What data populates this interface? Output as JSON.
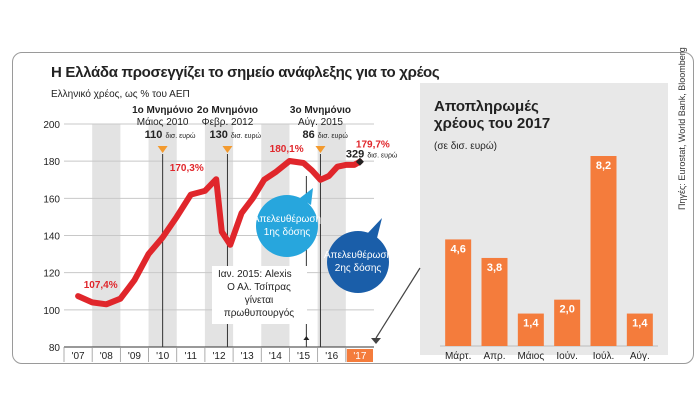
{
  "title": "Η Ελλάδα προσεγγίζει το σημείο ανάφλεξης για το χρέος",
  "subtitle": "Ελληνικό χρέος, ως % του ΑΕΠ",
  "right_title": "Αποπληρωμές χρέους του 2017",
  "right_subtitle": "(σε δισ. ευρώ)",
  "sources": "Πηγές: Eurostat, World Bank, Bloomberg",
  "colors": {
    "line": "#e0262b",
    "bar": "#f47c3c",
    "bubble_light": "#27a6dd",
    "bubble_dark": "#1a5ea9",
    "marker": "#f39a2e"
  },
  "chart_data": [
    {
      "type": "line",
      "title": "Η Ελλάδα προσεγγίζει το σημείο ανάφλεξης για το χρέος",
      "ylabel": "Ελληνικό χρέος, ως % του ΑΕΠ",
      "ylim": [
        80,
        200
      ],
      "yticks": [
        "80",
        "100",
        "120",
        "140",
        "160",
        "180",
        "200"
      ],
      "xticks": [
        "'07",
        "'08",
        "'09",
        "'10",
        "'11",
        "'12",
        "'13",
        "'14",
        "'15",
        "'16",
        "'17"
      ],
      "grid": true,
      "series": [
        {
          "x": [
            2007.0,
            2007.5,
            2008.0,
            2008.5,
            2009.0,
            2009.5,
            2010.0,
            2010.5,
            2011.0,
            2011.5,
            2011.9,
            2012.1,
            2012.4,
            2012.8,
            2013.2,
            2013.6,
            2014.0,
            2014.5,
            2015.0,
            2015.3,
            2015.6,
            2015.9,
            2016.2,
            2016.5,
            2016.8,
            2017.0
          ],
          "values": [
            107.4,
            104,
            103,
            106,
            116,
            130,
            139,
            150,
            162,
            164,
            170.3,
            142,
            135,
            152,
            160,
            170,
            174,
            180.1,
            179,
            175,
            170,
            172,
            177,
            178,
            178,
            179.7
          ]
        }
      ],
      "data_labels": [
        {
          "x": 2007.2,
          "y": 107.4,
          "text": "107,4%"
        },
        {
          "x": 2011.6,
          "y": 170.3,
          "text": "170,3%"
        },
        {
          "x": 2014.4,
          "y": 180.1,
          "text": "180,1%"
        },
        {
          "x": 2017.0,
          "y": 179.7,
          "text": "179,7%"
        }
      ],
      "annotations": [
        {
          "x": 2010.0,
          "title": "1ο Μνημόνιο",
          "date": "Μάιος 2010",
          "amount": "110",
          "unit": "δισ. ευρώ"
        },
        {
          "x": 2012.3,
          "title": "2ο Μνημόνιο",
          "date": "Φεβρ. 2012",
          "amount": "130",
          "unit": "δισ. ευρώ"
        },
        {
          "x": 2015.6,
          "title": "3ο Μνημόνιο",
          "date": "Αύγ. 2015",
          "amount": "86",
          "unit": "δισ. ευρώ"
        },
        {
          "x": 2017.0,
          "amount": "329",
          "unit": "δισ. ευρώ"
        },
        {
          "x": 2015.1,
          "lines": [
            "Ιαν. 2015: Alexis",
            "Ο Αλ. Τσίπρας",
            "γίνεται",
            "πρωθυπουργός"
          ]
        },
        {
          "bubble": "Απελευθέρωση 1ης δόσης",
          "lines": [
            "Απελευθέρωση",
            "1ης δόσης"
          ]
        },
        {
          "bubble": "Απελευθέρωση 2ης δόσης",
          "lines": [
            "Απελευθέρωση",
            "2ης δόσης"
          ]
        }
      ]
    },
    {
      "type": "bar",
      "title": "Αποπληρωμές χρέους του 2017",
      "subtitle": "(σε δισ. ευρώ)",
      "categories": [
        "Μάρτ.",
        "Απρ.",
        "Μάιος",
        "Ιούν.",
        "Ιούλ.",
        "Αύγ."
      ],
      "values": [
        4.6,
        3.8,
        1.4,
        2.0,
        8.2,
        1.4
      ],
      "labels": [
        "4,6",
        "3,8",
        "1,4",
        "2,0",
        "8,2",
        "1,4"
      ],
      "ylim": [
        0,
        8.2
      ]
    }
  ]
}
